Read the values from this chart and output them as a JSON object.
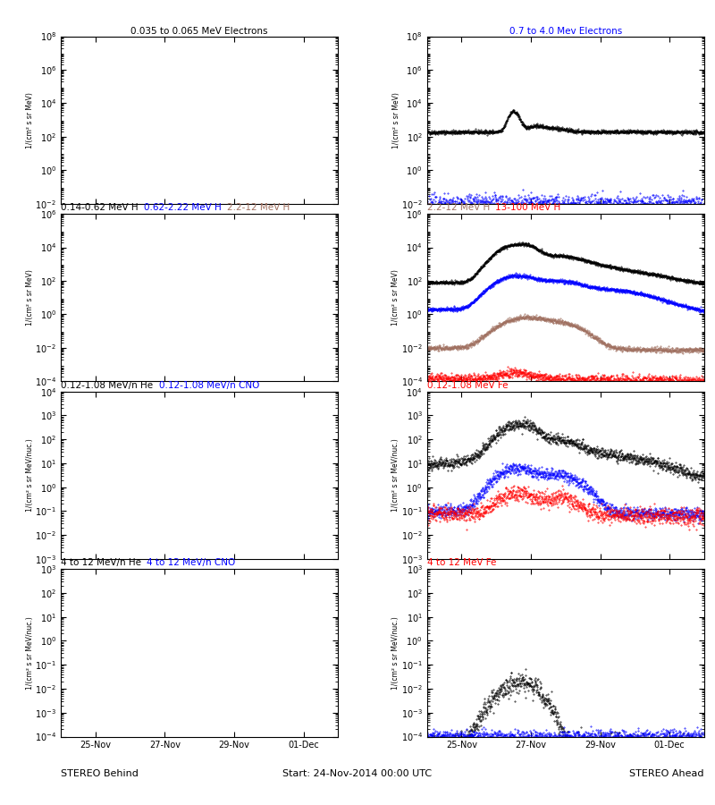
{
  "title_row1_left_black": "0.035 to 0.065 MeV Electrons",
  "title_row1_right_blue": "0.7 to 4.0 Mev Electrons",
  "title_row2_black": "0.14-0.62 MeV H",
  "title_row2_blue": "0.62-2.22 MeV H",
  "title_row2_brown": "2.2-12 MeV H",
  "title_row2_red": "13-100 MeV H",
  "title_row3_black": "0.12-1.08 MeV/n He",
  "title_row3_blue": "0.12-1.08 MeV/n CNO",
  "title_row3_red": "0.12-1.08 MeV Fe",
  "title_row4_black": "4 to 12 MeV/n He",
  "title_row4_blue": "4 to 12 MeV/n CNO",
  "title_row4_red": "4 to 12 MeV Fe",
  "xlabel_left": "STEREO Behind",
  "xlabel_right": "STEREO Ahead",
  "xlabel_center": "Start: 24-Nov-2014 00:00 UTC",
  "ylabel_elec": "1/(cm² s sr MeV)",
  "ylabel_H": "1/(cm² s sr MeV)",
  "ylabel_heavy": "1/(cm² s sr MeV/nuc.)",
  "xtick_labels": [
    "25-Nov",
    "27-Nov",
    "29-Nov",
    "01-Dec"
  ],
  "background": "#ffffff",
  "colors": {
    "black": "#000000",
    "blue": "#0000ff",
    "red": "#ff0000",
    "brown": "#a07060"
  },
  "row1_ylim": [
    -2,
    8
  ],
  "row2_ylim": [
    -4,
    6
  ],
  "row3_ylim": [
    -3,
    4
  ],
  "row4_ylim": [
    -4,
    3
  ]
}
